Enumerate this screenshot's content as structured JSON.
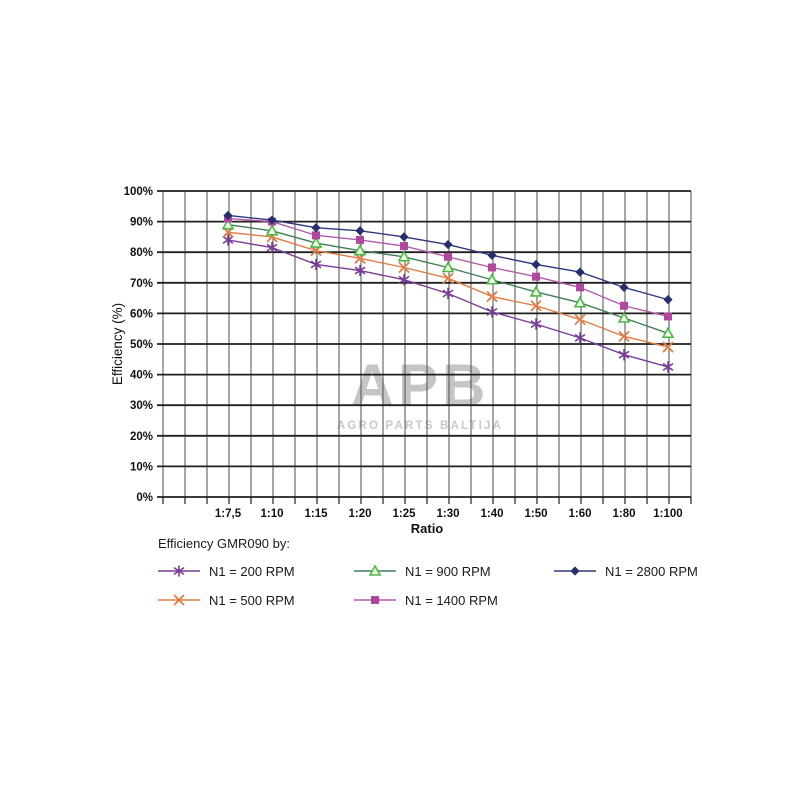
{
  "watermark": {
    "logo": "APB",
    "subtitle": "AGRO PARTS BALTIJA"
  },
  "legend": {
    "title": "Efficiency GMR090 by:"
  },
  "chart_data": {
    "type": "line",
    "title": "",
    "xlabel": "Ratio",
    "ylabel": "Efficiency (%)",
    "ylim": [
      0,
      100
    ],
    "y_tick_step": 10,
    "y_ticks": [
      "100%",
      "90%",
      "80%",
      "70%",
      "60%",
      "50%",
      "40%",
      "30%",
      "20%",
      "10%",
      "0%"
    ],
    "categories": [
      "1:7,5",
      "1:10",
      "1:15",
      "1:20",
      "1:25",
      "1:30",
      "1:40",
      "1:50",
      "1:60",
      "1:80",
      "1:100"
    ],
    "grid": "both",
    "legend_position": "bottom",
    "colors": {
      "horizontal_grid": "#1f1f1f",
      "vertical_grid": "#4d4d4d",
      "axis_text": "#111111"
    },
    "series": [
      {
        "name": "N1 = 200 RPM",
        "marker": "star",
        "color": "#7a3d96",
        "marker_color": "#7a3d96",
        "values": [
          84,
          81.5,
          76,
          74,
          71,
          66.5,
          60.5,
          56.5,
          52,
          46.5,
          42.5
        ]
      },
      {
        "name": "N1 = 500 RPM",
        "marker": "x",
        "color": "#e07c45",
        "marker_color": "#e07c45",
        "values": [
          86.5,
          85,
          80.5,
          78,
          75,
          71.5,
          65.5,
          62.5,
          58,
          52.5,
          49
        ]
      },
      {
        "name": "N1 = 900 RPM",
        "marker": "triangle",
        "color": "#3f7d55",
        "marker_color": "#4db848",
        "values": [
          89,
          87,
          83,
          80.5,
          78.5,
          75,
          71,
          67,
          63.5,
          58.5,
          53.5
        ]
      },
      {
        "name": "N1 = 1400 RPM",
        "marker": "square",
        "color": "#b15ba8",
        "marker_color": "#b2479f",
        "values": [
          91,
          90,
          85.5,
          84,
          82,
          78.5,
          75,
          72,
          68.5,
          62.5,
          59
        ]
      },
      {
        "name": "N1 = 2800 RPM",
        "marker": "diamond",
        "color": "#31377e",
        "marker_color": "#272e6d",
        "values": [
          92,
          90.5,
          88,
          87,
          85,
          82.5,
          79,
          76,
          73.5,
          68.5,
          64.5
        ]
      }
    ],
    "legend_display_order": [
      0,
      2,
      4,
      1,
      3
    ]
  }
}
